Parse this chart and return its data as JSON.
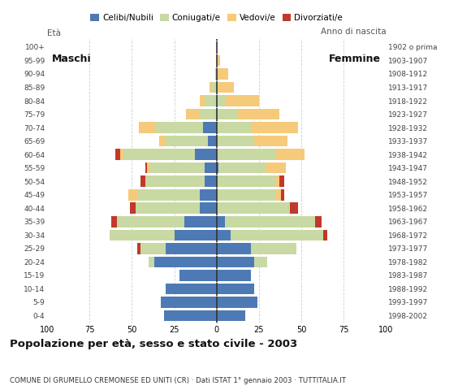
{
  "age_groups": [
    "0-4",
    "5-9",
    "10-14",
    "15-19",
    "20-24",
    "25-29",
    "30-34",
    "35-39",
    "40-44",
    "45-49",
    "50-54",
    "55-59",
    "60-64",
    "65-69",
    "70-74",
    "75-79",
    "80-84",
    "85-89",
    "90-94",
    "95-99",
    "100+"
  ],
  "birth_years": [
    "1998-2002",
    "1993-1997",
    "1988-1992",
    "1983-1987",
    "1978-1982",
    "1973-1977",
    "1968-1972",
    "1963-1967",
    "1958-1962",
    "1953-1957",
    "1948-1952",
    "1943-1947",
    "1938-1942",
    "1933-1937",
    "1928-1932",
    "1923-1927",
    "1918-1922",
    "1913-1917",
    "1908-1912",
    "1903-1907",
    "1902 o prima"
  ],
  "males_celibe": [
    31,
    33,
    30,
    22,
    37,
    30,
    25,
    19,
    10,
    10,
    7,
    7,
    13,
    5,
    8,
    0,
    0,
    0,
    0,
    0,
    0
  ],
  "males_coniugato": [
    0,
    0,
    0,
    0,
    3,
    15,
    38,
    40,
    38,
    37,
    35,
    32,
    42,
    25,
    28,
    10,
    7,
    3,
    1,
    0,
    0
  ],
  "males_vedovo": [
    0,
    0,
    0,
    0,
    0,
    0,
    0,
    0,
    0,
    5,
    0,
    2,
    2,
    4,
    10,
    8,
    3,
    1,
    0,
    0,
    0
  ],
  "males_divorziato": [
    0,
    0,
    0,
    0,
    0,
    2,
    0,
    3,
    3,
    0,
    3,
    1,
    3,
    0,
    0,
    0,
    0,
    0,
    0,
    0,
    0
  ],
  "females_celibe": [
    17,
    24,
    22,
    20,
    22,
    20,
    8,
    5,
    0,
    0,
    0,
    1,
    0,
    0,
    0,
    0,
    0,
    0,
    0,
    0,
    0
  ],
  "females_coniugato": [
    0,
    0,
    0,
    0,
    8,
    27,
    55,
    53,
    43,
    35,
    35,
    28,
    35,
    22,
    20,
    12,
    5,
    0,
    0,
    0,
    0
  ],
  "females_vedovo": [
    0,
    0,
    0,
    0,
    0,
    0,
    0,
    0,
    0,
    3,
    2,
    12,
    17,
    20,
    28,
    25,
    20,
    10,
    7,
    2,
    0
  ],
  "females_divorziato": [
    0,
    0,
    0,
    0,
    0,
    0,
    2,
    4,
    5,
    2,
    3,
    0,
    0,
    0,
    0,
    0,
    0,
    0,
    0,
    0,
    0
  ],
  "color_celibe": "#4d7ab5",
  "color_coniugato": "#c8d9a4",
  "color_vedovo": "#f5ca7a",
  "color_divorziato": "#c0392b",
  "legend_labels": [
    "Celibi/Nubili",
    "Coniugati/e",
    "Vedovi/e",
    "Divorziati/e"
  ],
  "title": "Popolazione per età, sesso e stato civile - 2003",
  "subtitle": "COMUNE DI GRUMELLO CREMONESE ED UNITI (CR) · Dati ISTAT 1° gennaio 2003 · TUTTITALIA.IT",
  "xlim": 100,
  "bg_color": "#ffffff",
  "grid_color": "#cccccc"
}
